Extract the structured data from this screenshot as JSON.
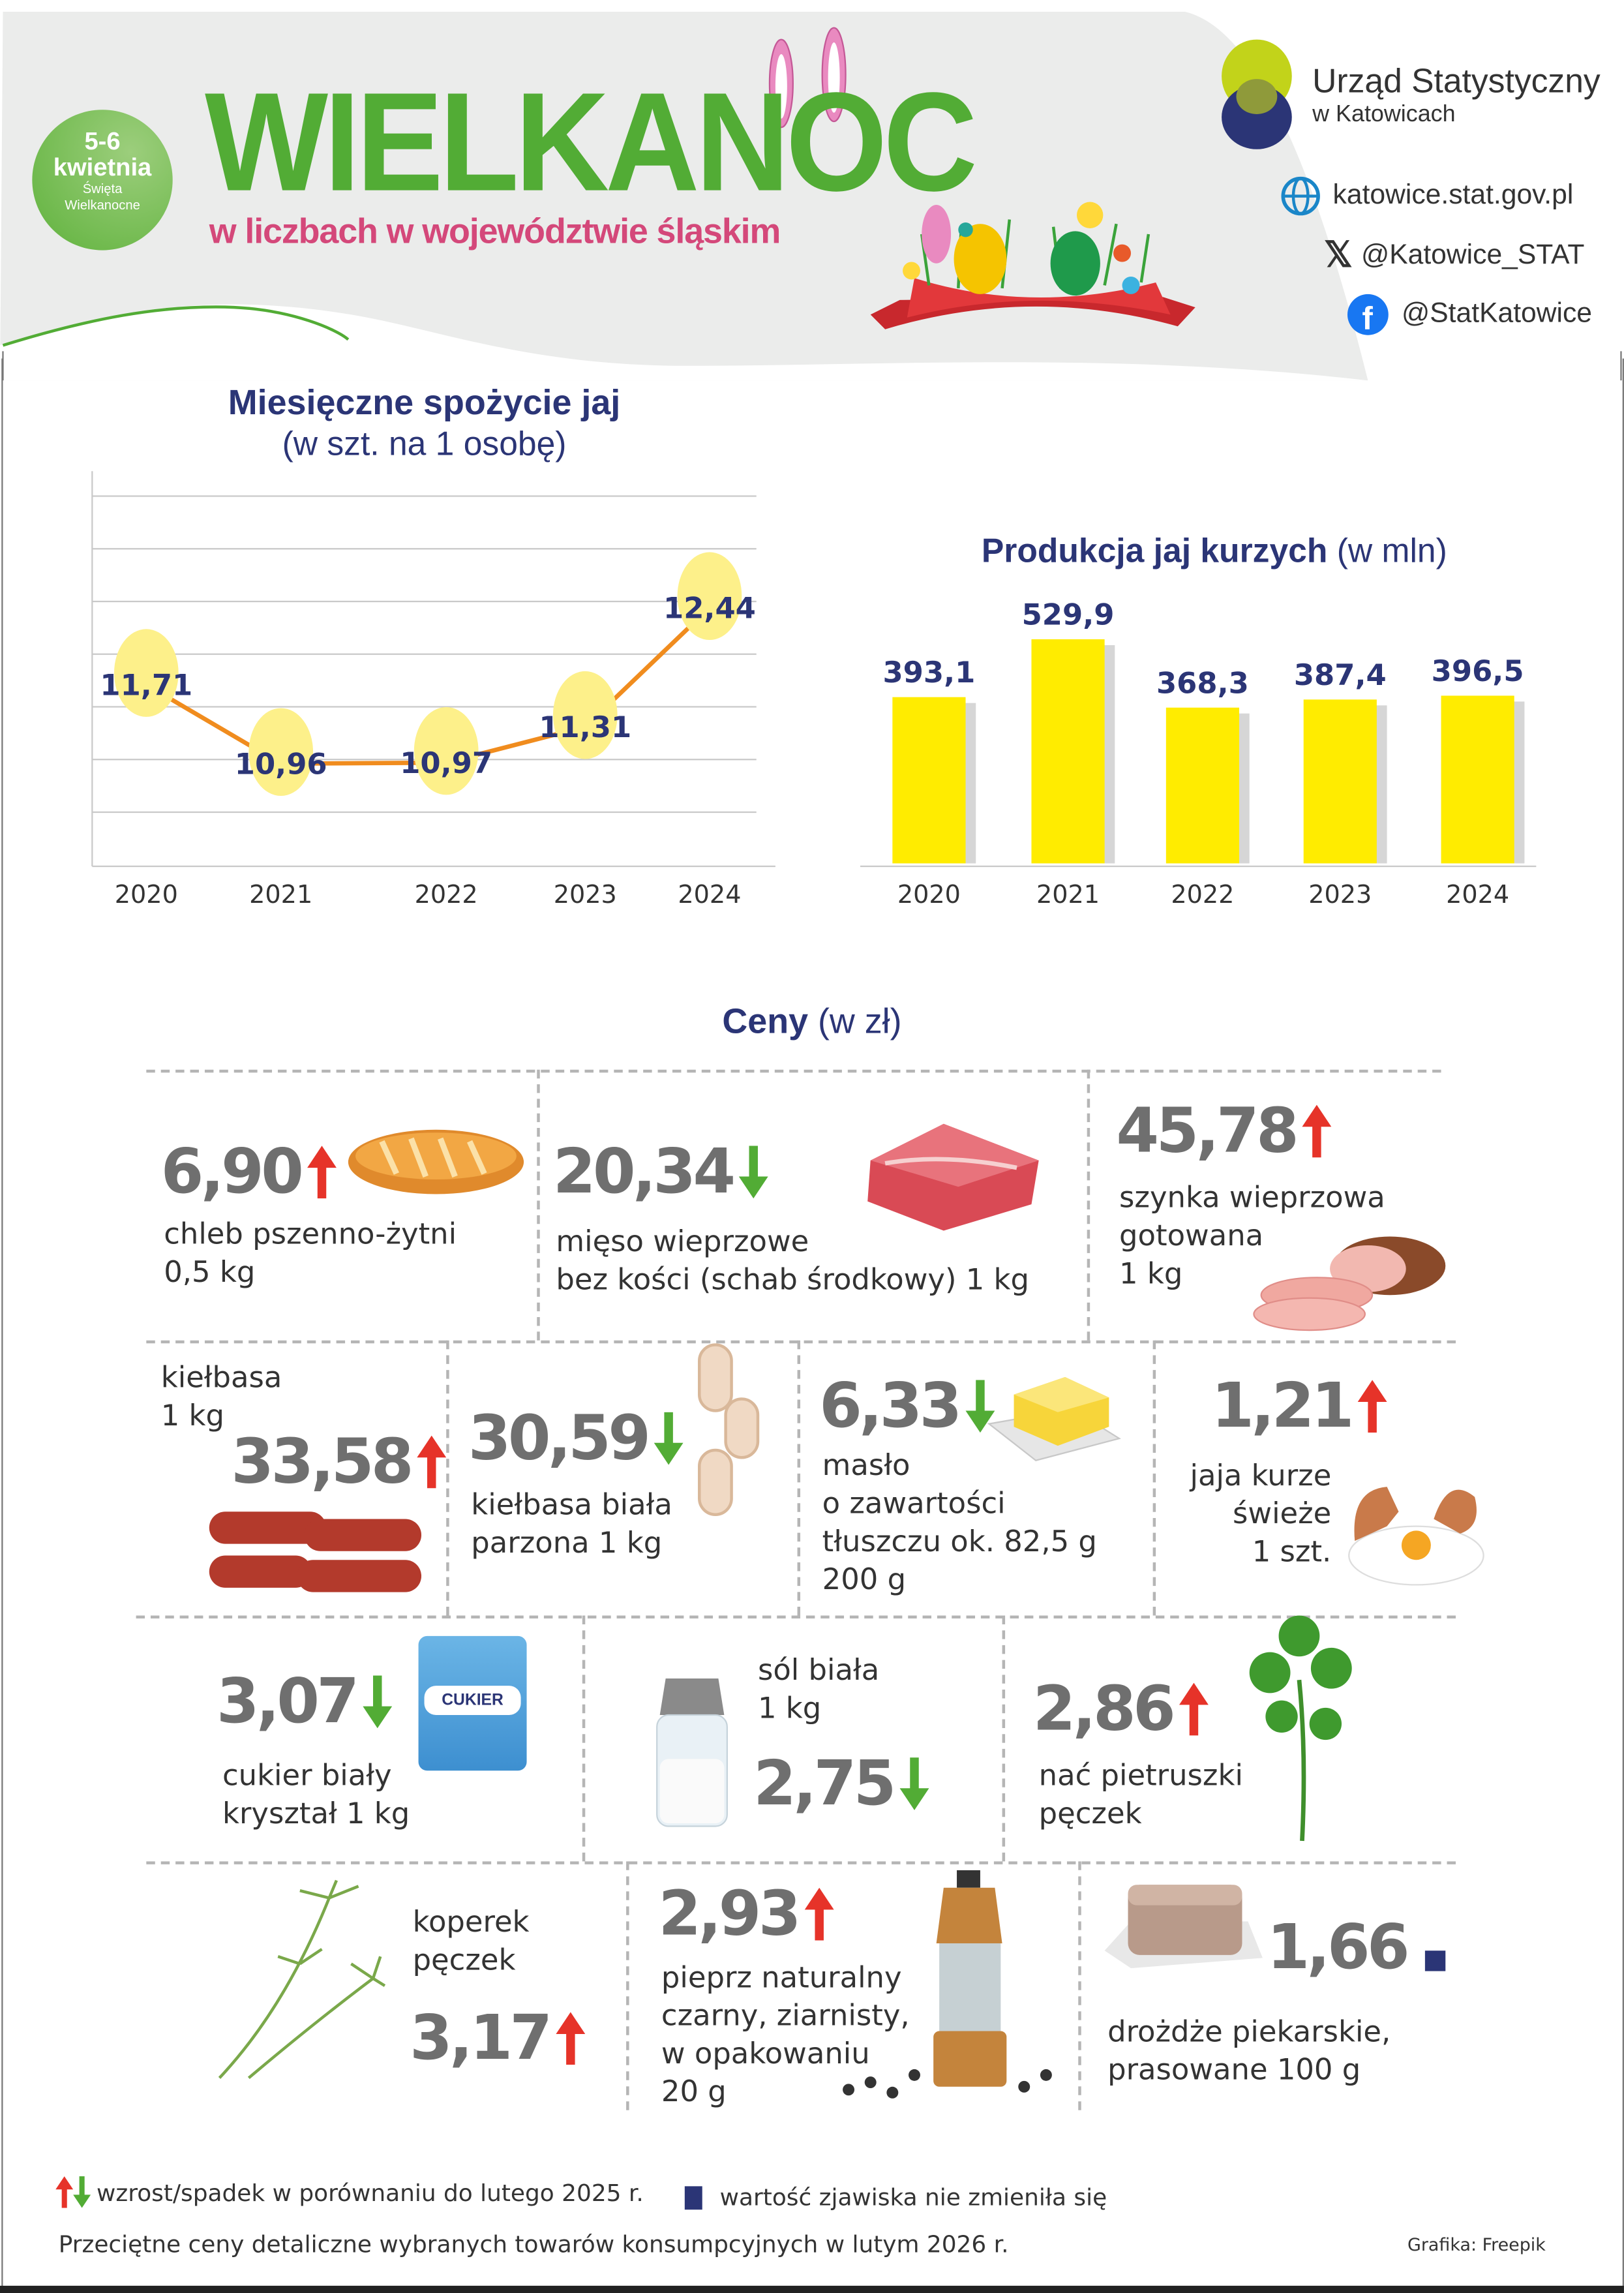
{
  "header": {
    "title": "WIELKANOC",
    "subtitle": "w liczbach w województwie śląskim",
    "badge": {
      "days": "5-6",
      "month": "kwietnia",
      "line1": "Święta",
      "line2": "Wielkanocne"
    },
    "org": {
      "name": "Urząd Statystyczny",
      "city": "w Katowicach"
    },
    "links": [
      {
        "icon": "globe-icon",
        "text": "katowice.stat.gov.pl"
      },
      {
        "icon": "x-icon",
        "text": "@Katowice_STAT"
      },
      {
        "icon": "facebook-icon",
        "text": "@StatKatowice"
      }
    ]
  },
  "colors": {
    "green": "#52ac35",
    "pink": "#d4487a",
    "navy": "#2b3576",
    "up": "#e63329",
    "down": "#52ac35",
    "bar": "#ffec00",
    "line": "#f08c1e",
    "egg": "#fdf08a",
    "price": "#6f6f6f"
  },
  "chart_data": [
    {
      "type": "line",
      "title": "Miesięczne spożycie jaj",
      "subtitle": "(w szt. na 1 osobę)",
      "categories": [
        "2020",
        "2021",
        "2022",
        "2023",
        "2024"
      ],
      "values": [
        11.71,
        10.96,
        10.97,
        11.31,
        12.44
      ],
      "labels": [
        "11,71",
        "10,96",
        "10,97",
        "11,31",
        "12,44"
      ],
      "ylim": [
        10.5,
        13.5
      ],
      "grid": true
    },
    {
      "type": "bar",
      "title": "Produkcja jaj kurzych",
      "unit": "(w mln)",
      "categories": [
        "2020",
        "2021",
        "2022",
        "2023",
        "2024"
      ],
      "values": [
        393.1,
        529.9,
        368.3,
        387.4,
        396.5
      ],
      "labels": [
        "393,1",
        "529,9",
        "368,3",
        "387,4",
        "396,5"
      ],
      "ylim": [
        0,
        1000
      ],
      "grid": false
    }
  ],
  "prices": {
    "title": "Ceny",
    "unit": "(w zł)",
    "items": [
      {
        "value": "6,90",
        "trend": "up",
        "label": "chleb pszenno-żytni\n0,5 kg"
      },
      {
        "value": "20,34",
        "trend": "down",
        "label": "mięso wieprzowe\nbez kości (schab środkowy) 1 kg"
      },
      {
        "value": "45,78",
        "trend": "up",
        "label": "szynka wieprzowa\ngotowana\n1 kg"
      },
      {
        "value": "33,58",
        "trend": "up",
        "label": "kiełbasa\n1 kg"
      },
      {
        "value": "30,59",
        "trend": "down",
        "label": "kiełbasa biała\nparzona 1 kg"
      },
      {
        "value": "6,33",
        "trend": "down",
        "label": "masło\no zawartości\ntłuszczu ok. 82,5 g\n200 g"
      },
      {
        "value": "1,21",
        "trend": "up",
        "label": "jaja kurze\nświeże\n1 szt."
      },
      {
        "value": "3,07",
        "trend": "down",
        "label": "cukier biały\nkryształ 1 kg",
        "icon_text": "CUKIER"
      },
      {
        "value": "2,75",
        "trend": "down",
        "label": "sól biała\n1 kg"
      },
      {
        "value": "2,86",
        "trend": "up",
        "label": "nać pietruszki\npęczek"
      },
      {
        "value": "3,17",
        "trend": "up",
        "label": "koperek\npęczek"
      },
      {
        "value": "2,93",
        "trend": "up",
        "label": "pieprz naturalny\nczarny, ziarnisty,\nw opakowaniu\n20 g"
      },
      {
        "value": "1,66",
        "trend": "same",
        "label": "drożdże piekarskie,\nprasowane 100 g"
      }
    ]
  },
  "legend": {
    "updown": "wzrost/spadek w porównaniu do lutego 2025 r.",
    "same": "wartość zjawiska nie zmieniła się"
  },
  "footer": {
    "note": "Przeciętne ceny detaliczne wybranych towarów konsumpcyjnych w lutym 2026 r.",
    "credit": "Grafika: Freepik"
  }
}
